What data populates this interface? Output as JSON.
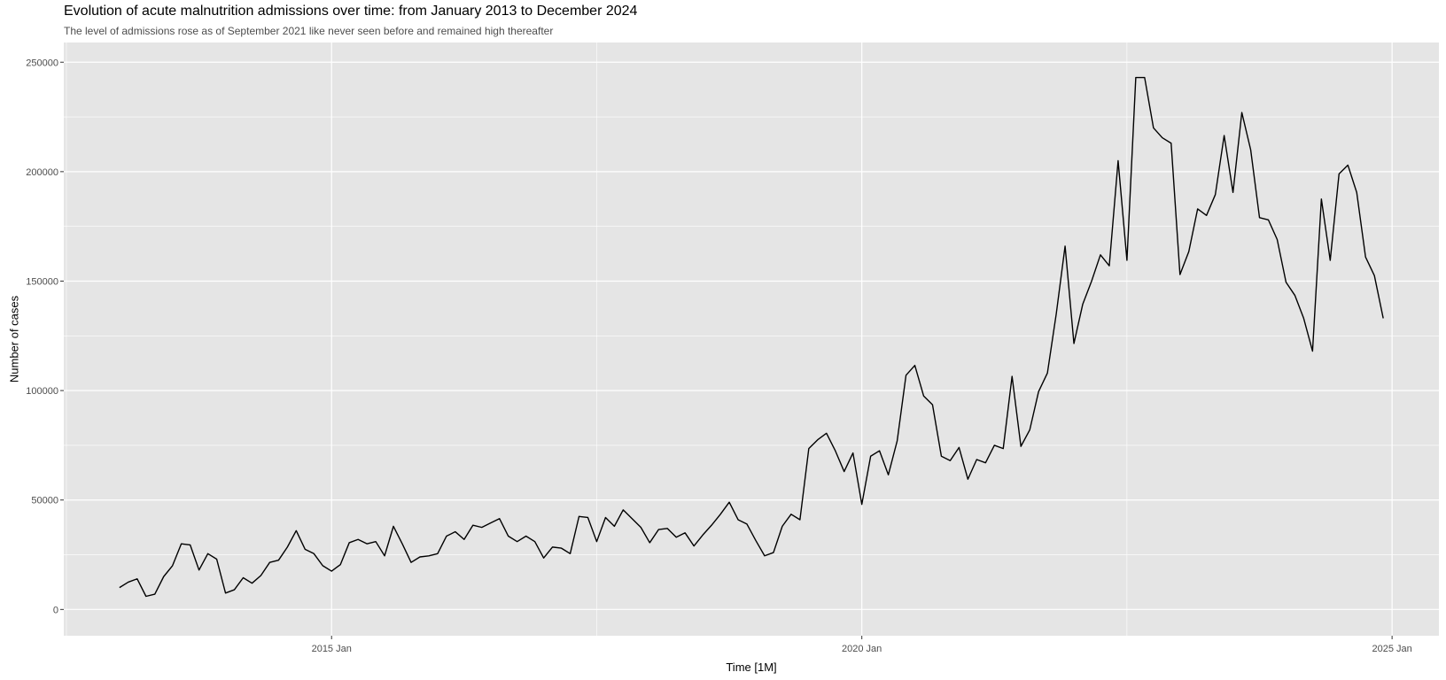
{
  "chart_data": {
    "type": "line",
    "title": "Evolution of acute malnutrition admissions over time: from January 2013 to December 2024",
    "subtitle": "The level of admissions rose as of September 2021 like never seen before and remained high thereafter",
    "xlabel": "Time [1M]",
    "ylabel": "Number of cases",
    "ylim": [
      0,
      250000
    ],
    "y_ticks": [
      0,
      50000,
      100000,
      150000,
      200000,
      250000
    ],
    "y_tick_labels": [
      "0",
      "50000",
      "100000",
      "150000",
      "200000",
      "250000"
    ],
    "x_ticks": [
      "2015-01",
      "2020-01",
      "2025-01"
    ],
    "x_tick_labels": [
      "2015 Jan",
      "2020 Jan",
      "2025 Jan"
    ],
    "x_start": "2013-01",
    "grid": true,
    "line_color": "#000000",
    "panel_color": "#e5e5e5",
    "grid_color": "#ffffff",
    "series": [
      {
        "values": [
          10000,
          12500,
          14000,
          6000,
          7000,
          15000,
          20000,
          30000,
          29500,
          18000,
          25500,
          23000,
          7500,
          9000,
          14500,
          12000,
          15500,
          21500,
          22500,
          28500,
          36000,
          27500,
          25500,
          20000,
          17500,
          20500,
          30500,
          32000,
          30000,
          31000,
          24500,
          38000,
          30000,
          21500,
          24000,
          24500,
          25500,
          33500,
          35500,
          32000,
          38500,
          37500,
          39500,
          41500,
          33500,
          31000,
          33500,
          31000,
          23500,
          28500,
          28000,
          25500,
          42500,
          42000,
          31000,
          42000,
          38000,
          45500,
          41500,
          37500,
          30500,
          36500,
          37000,
          33000,
          35000,
          29000,
          34000,
          38500,
          43500,
          49000,
          41000,
          39000,
          31500,
          24500,
          26000,
          38000,
          43500,
          41000,
          73500,
          77500,
          80500,
          72500,
          63000,
          71500,
          48000,
          70000,
          72500,
          61500,
          77000,
          107000,
          111500,
          97500,
          93500,
          70000,
          68000,
          74000,
          59500,
          68500,
          67000,
          75000,
          73500,
          106500,
          74500,
          82000,
          99500,
          108000,
          135000,
          166000,
          121500,
          139500,
          150000,
          162000,
          157000,
          205000,
          159500,
          243000,
          243000,
          220000,
          215500,
          213000,
          153000,
          163500,
          183000,
          180000,
          189500,
          216500,
          190500,
          227000,
          210000,
          179000,
          178000,
          169000,
          149500,
          143500,
          133000,
          118000,
          187500,
          159500,
          199000,
          203000,
          190500,
          161000,
          152500,
          133000
        ]
      }
    ]
  }
}
